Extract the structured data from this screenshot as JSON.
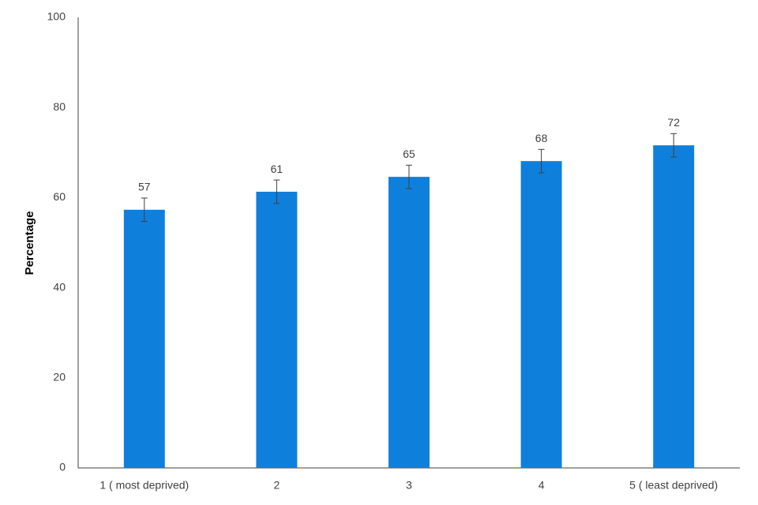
{
  "chart_data": {
    "type": "bar",
    "y_label": "Percentage",
    "categories": [
      "1 ( most deprived)",
      "2",
      "3",
      "4",
      "5 ( least deprived)"
    ],
    "values": [
      57.3,
      61.3,
      64.6,
      68.1,
      71.6
    ],
    "value_labels": [
      "57",
      "61",
      "65",
      "68",
      "72"
    ],
    "errors": [
      2.6,
      2.6,
      2.6,
      2.6,
      2.6
    ],
    "color": "#0f7fdc",
    "ylim": [
      0,
      100
    ],
    "yticks": [
      0,
      20,
      40,
      60,
      80,
      100
    ],
    "grid": false
  }
}
